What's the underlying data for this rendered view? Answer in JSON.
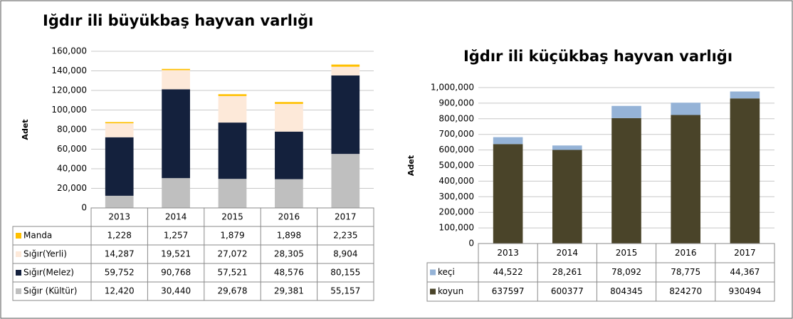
{
  "chart_data": [
    {
      "type": "stacked_bar",
      "title": "Iğdır ili büyükbaş hayvan varlığı",
      "y_label": "Adet",
      "categories": [
        "2013",
        "2014",
        "2015",
        "2016",
        "2017"
      ],
      "series": [
        {
          "name": "Manda",
          "color": "#ffc000",
          "values": [
            1228,
            1257,
            1879,
            1898,
            2235
          ],
          "value_labels": [
            "1,228",
            "1,257",
            "1,879",
            "1,898",
            "2,235"
          ]
        },
        {
          "name": "Sığır(Yerli)",
          "color": "#fde9d9",
          "values": [
            14287,
            19521,
            27072,
            28305,
            8904
          ],
          "value_labels": [
            "14,287",
            "19,521",
            "27,072",
            "28,305",
            "8,904"
          ]
        },
        {
          "name": "Sığır(Melez)",
          "color": "#14213d",
          "values": [
            59752,
            90768,
            57521,
            48576,
            80155
          ],
          "value_labels": [
            "59,752",
            "90,768",
            "57,521",
            "48,576",
            "80,155"
          ]
        },
        {
          "name": "Sığır (Kültür)",
          "color": "#bfbfbf",
          "values": [
            12420,
            30440,
            29678,
            29381,
            55157
          ],
          "value_labels": [
            "12,420",
            "30,440",
            "29,678",
            "29,381",
            "55,157"
          ]
        }
      ],
      "ylim": [
        0,
        160000
      ],
      "yticks": [
        0,
        {
          "value": 20000,
          "label": "20,000"
        },
        {
          "value": 40000,
          "label": "40,000"
        },
        {
          "value": 60000,
          "label": "60,000"
        },
        {
          "value": 80000,
          "label": "80,000"
        },
        {
          "value": 100000,
          "label": "100,000"
        },
        {
          "value": 120000,
          "label": "120,000"
        },
        {
          "value": 140000,
          "label": "140,000"
        },
        {
          "value": 160000,
          "label": "160,000"
        }
      ],
      "grid": true
    },
    {
      "type": "stacked_bar",
      "title": "Iğdır ili küçükbaş hayvan varlığı",
      "y_label": "Adet",
      "categories": [
        "2013",
        "2014",
        "2015",
        "2016",
        "2017"
      ],
      "series": [
        {
          "name": "keçi",
          "color": "#95b3d7",
          "values": [
            44522,
            28261,
            78092,
            78775,
            44367
          ],
          "value_labels": [
            "44,522",
            "28,261",
            "78,092",
            "78,775",
            "44,367"
          ]
        },
        {
          "name": "koyun",
          "color": "#4a4429",
          "values": [
            637597,
            600377,
            804345,
            824270,
            930494
          ]
        }
      ],
      "ylim": [
        0,
        1000000
      ],
      "yticks": [
        0,
        {
          "value": 100000,
          "label": "100,000"
        },
        {
          "value": 200000,
          "label": "200,000"
        },
        {
          "value": 300000,
          "label": "300,000"
        },
        {
          "value": 400000,
          "label": "400,000"
        },
        {
          "value": 500000,
          "label": "500,000"
        },
        {
          "value": 600000,
          "label": "600,000"
        },
        {
          "value": 700000,
          "label": "700,000"
        },
        {
          "value": 800000,
          "label": "800,000"
        },
        {
          "value": 900000,
          "label": "900,000"
        },
        {
          "value": 1000000,
          "label": "1,000,000"
        }
      ],
      "grid": true
    }
  ]
}
